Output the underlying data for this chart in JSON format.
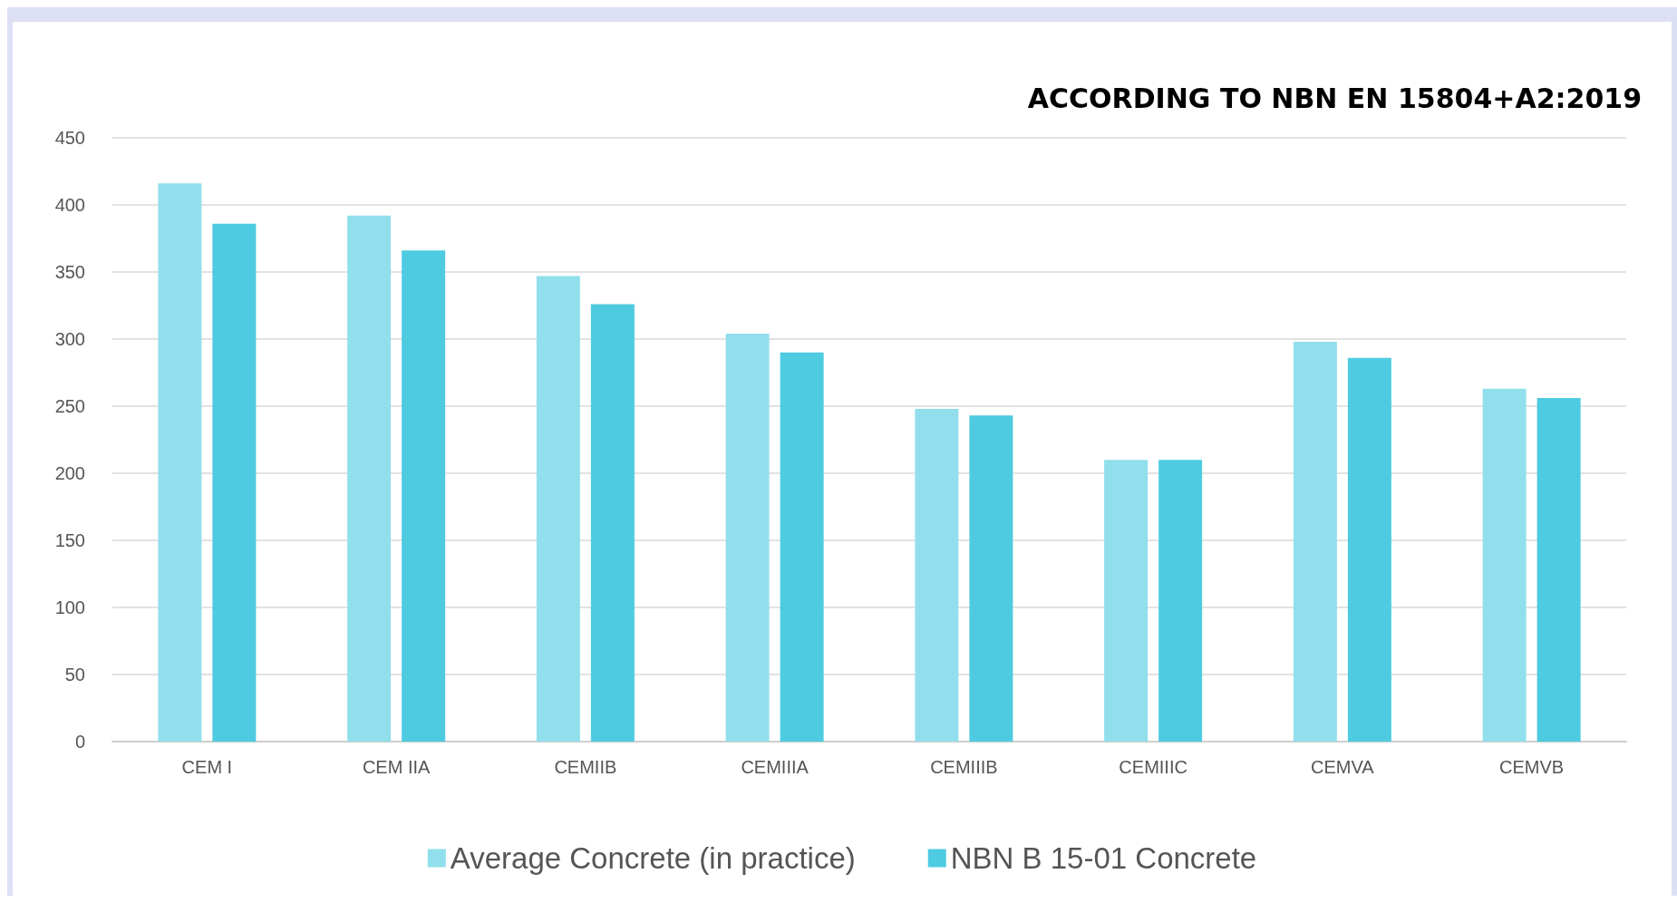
{
  "chart_data": {
    "type": "bar",
    "title": "ACCORDING TO NBN EN 15804+A2:2019",
    "categories": [
      "CEM I",
      "CEM IIA",
      "CEMIIB",
      "CEMIIIA",
      "CEMIIIB",
      "CEMIIIC",
      "CEMVA",
      "CEMVB"
    ],
    "series": [
      {
        "name": "Average Concrete (in practice)",
        "color": "#91dfec",
        "values": [
          416,
          392,
          347,
          304,
          248,
          210,
          298,
          263
        ]
      },
      {
        "name": "NBN B 15-01 Concrete",
        "color": "#4ecbe0",
        "values": [
          386,
          366,
          326,
          290,
          243,
          210,
          286,
          256
        ]
      }
    ],
    "ylim": [
      0,
      450
    ],
    "yticks": [
      0,
      50,
      100,
      150,
      200,
      250,
      300,
      350,
      400,
      450
    ],
    "grid": "y",
    "legend": "bottom"
  }
}
